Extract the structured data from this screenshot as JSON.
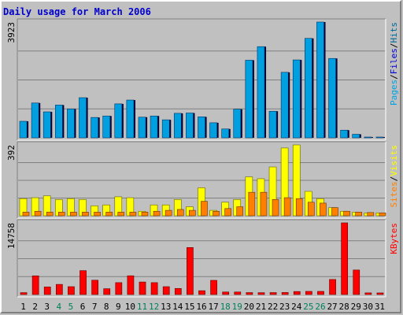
{
  "chart_data": {
    "type": "bar",
    "title": "Daily usage for March 2006",
    "categories": [
      "1",
      "2",
      "3",
      "4",
      "5",
      "6",
      "7",
      "8",
      "9",
      "10",
      "11",
      "12",
      "13",
      "14",
      "15",
      "16",
      "17",
      "18",
      "19",
      "20",
      "21",
      "22",
      "23",
      "24",
      "25",
      "26",
      "27",
      "28",
      "29",
      "30",
      "31"
    ],
    "weekend_days": [
      "4",
      "5",
      "11",
      "12",
      "18",
      "19",
      "25",
      "26"
    ],
    "panels": [
      {
        "max_label": "3923",
        "ylim": [
          0,
          3923
        ],
        "series": [
          {
            "name": "Pages",
            "color": "#00a0e0",
            "values": [
              0,
              0,
              0,
              0,
              0,
              0,
              0,
              0,
              0,
              0,
              0,
              0,
              0,
              0,
              0,
              0,
              0,
              0,
              0,
              0,
              0,
              0,
              0,
              0,
              0,
              0,
              0,
              0,
              0,
              0,
              0
            ]
          },
          {
            "name": "Files",
            "color": "#0000cc",
            "values": [
              560,
              1180,
              880,
              1110,
              980,
              1360,
              690,
              740,
              1150,
              1280,
              700,
              740,
              610,
              830,
              840,
              710,
              510,
              300,
              970,
              2630,
              3090,
              900,
              2220,
              2640,
              3370,
              3923,
              2690,
              260,
              120,
              20,
              20
            ]
          },
          {
            "name": "Hits",
            "color": "#006699",
            "values": [
              560,
              1180,
              880,
              1110,
              980,
              1360,
              690,
              740,
              1150,
              1280,
              700,
              740,
              610,
              830,
              840,
              710,
              510,
              300,
              970,
              2630,
              3090,
              900,
              2220,
              2640,
              3370,
              3923,
              2690,
              260,
              120,
              20,
              20
            ]
          }
        ],
        "legend": [
          "Pages",
          "/",
          "Files",
          "/",
          "Hits"
        ]
      },
      {
        "max_label": "392",
        "ylim": [
          0,
          392
        ],
        "series": [
          {
            "name": "Sites",
            "color": "#ff8000",
            "values": [
              20,
              25,
              20,
              20,
              20,
              20,
              20,
              20,
              20,
              20,
              20,
              25,
              30,
              35,
              30,
              80,
              25,
              40,
              50,
              130,
              130,
              90,
              100,
              95,
              75,
              70,
              45,
              25,
              20,
              18,
              16
            ]
          },
          {
            "name": "Visits",
            "color": "#ffff00",
            "values": [
              95,
              100,
              110,
              90,
              95,
              90,
              55,
              60,
              105,
              100,
              25,
              60,
              60,
              90,
              50,
              155,
              30,
              75,
              90,
              215,
              205,
              270,
              375,
              392,
              135,
              95,
              45,
              25,
              20,
              15,
              16
            ]
          }
        ],
        "legend": [
          "Sites",
          "/",
          "Visits"
        ]
      },
      {
        "max_label": "14758",
        "ylim": [
          0,
          14758
        ],
        "series": [
          {
            "name": "KBytes",
            "color": "#ff0000",
            "values": [
              390,
              3850,
              1560,
              2090,
              1620,
              4920,
              2950,
              1200,
              2450,
              3860,
              2580,
              2450,
              1620,
              1250,
              9680,
              790,
              2920,
              520,
              520,
              400,
              380,
              400,
              420,
              620,
              650,
              650,
              3100,
              14758,
              5050,
              340,
              330
            ]
          }
        ],
        "legend": [
          "KBytes"
        ]
      }
    ]
  }
}
